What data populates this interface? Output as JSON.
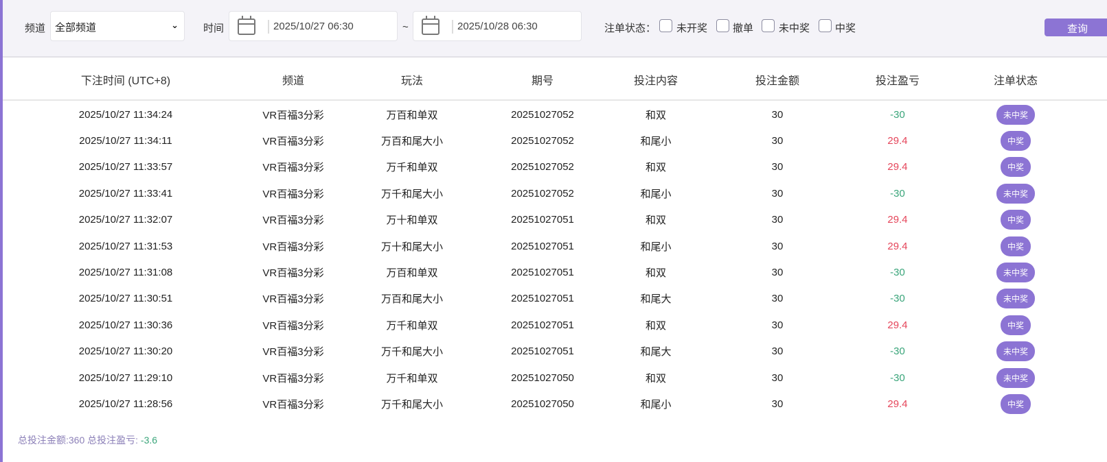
{
  "filter": {
    "channel_label": "频道",
    "channel_value": "全部频道",
    "time_label": "时间",
    "start": "2025/10/27 06:30",
    "tilde": "~",
    "end": "2025/10/28 06:30",
    "status_label": "注单状态：",
    "statuses": [
      "未开奖",
      "撤单",
      "未中奖",
      "中奖"
    ],
    "query_label": "查询"
  },
  "table": {
    "headers": [
      "下注时间 (UTC+8)",
      "频道",
      "玩法",
      "期号",
      "投注内容",
      "投注金额",
      "投注盈亏",
      "注单状态"
    ],
    "rows": [
      [
        "2025/10/27 11:34:24",
        "VR百福3分彩",
        "万百和单双",
        "20251027052",
        "和双",
        "30",
        "-30",
        "未中奖"
      ],
      [
        "2025/10/27 11:34:11",
        "VR百福3分彩",
        "万百和尾大小",
        "20251027052",
        "和尾小",
        "30",
        "29.4",
        "中奖"
      ],
      [
        "2025/10/27 11:33:57",
        "VR百福3分彩",
        "万千和单双",
        "20251027052",
        "和双",
        "30",
        "29.4",
        "中奖"
      ],
      [
        "2025/10/27 11:33:41",
        "VR百福3分彩",
        "万千和尾大小",
        "20251027052",
        "和尾小",
        "30",
        "-30",
        "未中奖"
      ],
      [
        "2025/10/27 11:32:07",
        "VR百福3分彩",
        "万十和单双",
        "20251027051",
        "和双",
        "30",
        "29.4",
        "中奖"
      ],
      [
        "2025/10/27 11:31:53",
        "VR百福3分彩",
        "万十和尾大小",
        "20251027051",
        "和尾小",
        "30",
        "29.4",
        "中奖"
      ],
      [
        "2025/10/27 11:31:08",
        "VR百福3分彩",
        "万百和单双",
        "20251027051",
        "和双",
        "30",
        "-30",
        "未中奖"
      ],
      [
        "2025/10/27 11:30:51",
        "VR百福3分彩",
        "万百和尾大小",
        "20251027051",
        "和尾大",
        "30",
        "-30",
        "未中奖"
      ],
      [
        "2025/10/27 11:30:36",
        "VR百福3分彩",
        "万千和单双",
        "20251027051",
        "和双",
        "30",
        "29.4",
        "中奖"
      ],
      [
        "2025/10/27 11:30:20",
        "VR百福3分彩",
        "万千和尾大小",
        "20251027051",
        "和尾大",
        "30",
        "-30",
        "未中奖"
      ],
      [
        "2025/10/27 11:29:10",
        "VR百福3分彩",
        "万千和单双",
        "20251027050",
        "和双",
        "30",
        "-30",
        "未中奖"
      ],
      [
        "2025/10/27 11:28:56",
        "VR百福3分彩",
        "万千和尾大小",
        "20251027050",
        "和尾小",
        "30",
        "29.4",
        "中奖"
      ]
    ]
  },
  "footer": {
    "total_label": "总投注金额:",
    "total": "360",
    "pl_label": "总投注盈亏:",
    "pl": "-3.6"
  },
  "colors": {
    "accent": "#8c74d4",
    "win": "#e5455a",
    "loss": "#3aa57a"
  }
}
